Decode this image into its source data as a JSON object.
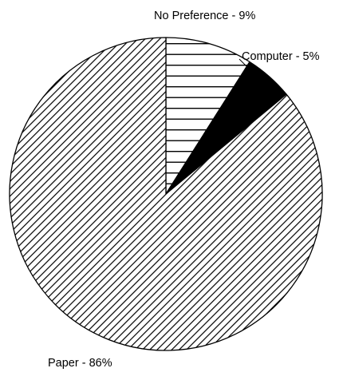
{
  "chart_data": {
    "type": "pie",
    "title": "",
    "start_angle_deg": 0,
    "direction": "clockwise",
    "slices": [
      {
        "label": "No Preference - 9%",
        "category": "No Preference",
        "value": 9,
        "pattern": "horizontal-lines",
        "fill": "#ffffff",
        "stroke": "#000000"
      },
      {
        "label": "Computer - 5%",
        "category": "Computer",
        "value": 5,
        "pattern": "solid",
        "fill": "#000000",
        "stroke": "#000000"
      },
      {
        "label": "Paper - 86%",
        "category": "Paper",
        "value": 86,
        "pattern": "diagonal-lines",
        "fill": "#ffffff",
        "stroke": "#000000"
      }
    ]
  }
}
